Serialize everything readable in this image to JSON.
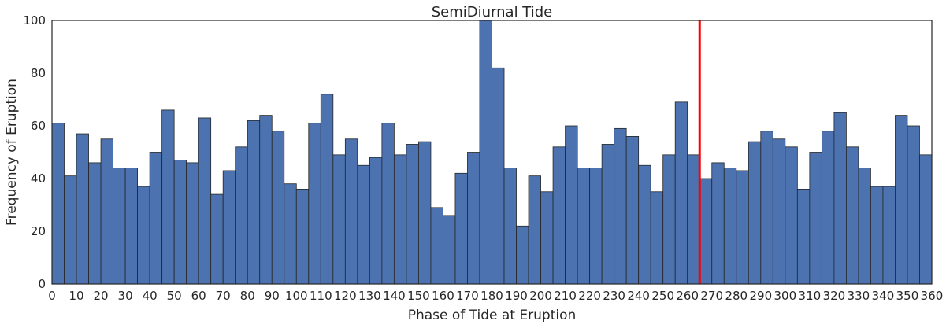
{
  "chart_data": {
    "type": "bar",
    "title": "SemiDiurnal Tide",
    "xlabel": "Phase of Tide at Eruption",
    "ylabel": "Frequency of Eruption",
    "xlim": [
      0,
      360
    ],
    "ylim": [
      0,
      100
    ],
    "bin_width": 5,
    "x_ticks": [
      0,
      10,
      20,
      30,
      40,
      50,
      60,
      70,
      80,
      90,
      100,
      110,
      120,
      130,
      140,
      150,
      160,
      170,
      180,
      190,
      200,
      210,
      220,
      230,
      240,
      250,
      260,
      270,
      280,
      290,
      300,
      310,
      320,
      330,
      340,
      350,
      360
    ],
    "y_ticks": [
      0,
      20,
      40,
      60,
      80,
      100
    ],
    "grid": false,
    "bar_color": "#4c72b0",
    "bar_edge_color": "#262626",
    "bin_starts": [
      0,
      5,
      10,
      15,
      20,
      25,
      30,
      35,
      40,
      45,
      50,
      55,
      60,
      65,
      70,
      75,
      80,
      85,
      90,
      95,
      100,
      105,
      110,
      115,
      120,
      125,
      130,
      135,
      140,
      145,
      150,
      155,
      160,
      165,
      170,
      175,
      180,
      185,
      190,
      195,
      200,
      205,
      210,
      215,
      220,
      225,
      230,
      235,
      240,
      245,
      250,
      255,
      260,
      265,
      270,
      275,
      280,
      285,
      290,
      295,
      300,
      305,
      310,
      315,
      320,
      325,
      330,
      335,
      340,
      345,
      350,
      355
    ],
    "values": [
      61,
      41,
      57,
      46,
      55,
      44,
      44,
      37,
      50,
      66,
      47,
      46,
      63,
      34,
      43,
      52,
      62,
      64,
      58,
      38,
      36,
      61,
      72,
      49,
      55,
      45,
      48,
      61,
      49,
      53,
      54,
      29,
      26,
      42,
      50,
      100,
      82,
      44,
      22,
      41,
      35,
      52,
      60,
      44,
      44,
      53,
      59,
      56,
      45,
      35,
      49,
      69,
      49,
      40,
      46,
      44,
      43,
      54,
      58,
      55,
      52,
      36,
      50,
      58,
      65,
      52,
      44,
      37,
      37,
      64,
      60,
      49
    ],
    "reference_line": {
      "x": 265,
      "color": "#ff0000"
    }
  }
}
